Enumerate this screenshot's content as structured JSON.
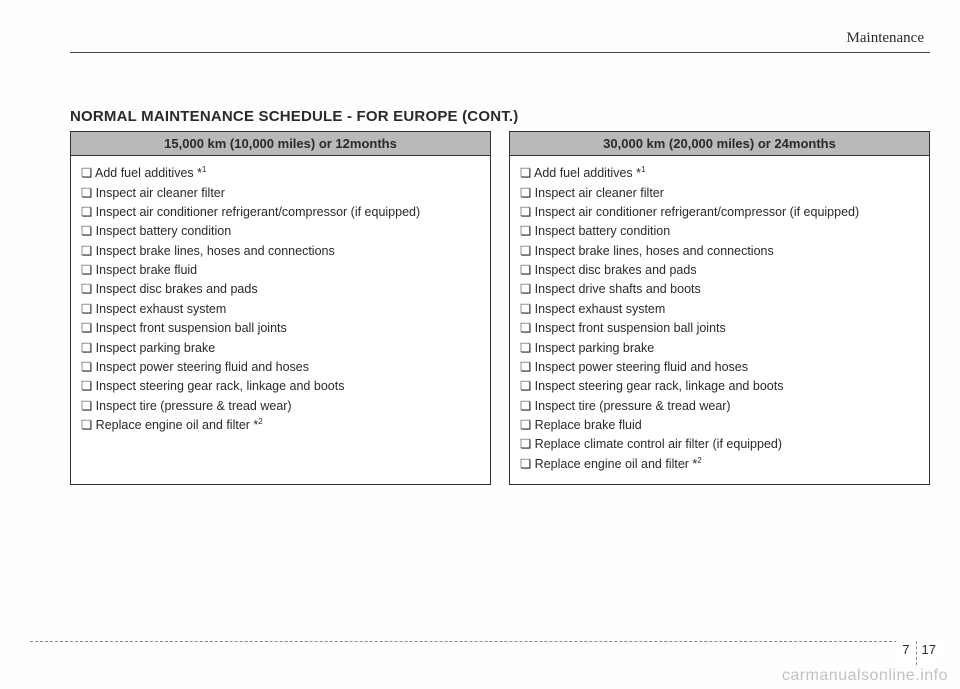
{
  "header": {
    "chapter": "Maintenance"
  },
  "section_title": "NORMAL MAINTENANCE SCHEDULE - FOR EUROPE (CONT.)",
  "columns": [
    {
      "heading": "15,000 km (10,000 miles) or 12months",
      "items": [
        {
          "text": "Add fuel additives *",
          "sup": "1"
        },
        {
          "text": "Inspect air cleaner filter"
        },
        {
          "text": "Inspect air conditioner refrigerant/compressor (if equipped)"
        },
        {
          "text": "Inspect battery condition"
        },
        {
          "text": "Inspect brake lines, hoses and connections"
        },
        {
          "text": "Inspect brake fluid"
        },
        {
          "text": "Inspect disc brakes and pads"
        },
        {
          "text": "Inspect exhaust system"
        },
        {
          "text": "Inspect front suspension ball joints"
        },
        {
          "text": "Inspect parking brake"
        },
        {
          "text": "Inspect power steering fluid and hoses"
        },
        {
          "text": "Inspect steering gear rack, linkage and boots"
        },
        {
          "text": "Inspect tire (pressure & tread wear)"
        },
        {
          "text": "Replace engine oil and filter *",
          "sup": "2"
        }
      ]
    },
    {
      "heading": "30,000 km (20,000 miles) or 24months",
      "items": [
        {
          "text": "Add fuel additives *",
          "sup": "1"
        },
        {
          "text": "Inspect air cleaner filter"
        },
        {
          "text": "Inspect air conditioner refrigerant/compressor (if equipped)"
        },
        {
          "text": "Inspect battery condition"
        },
        {
          "text": "Inspect brake lines, hoses and connections"
        },
        {
          "text": "Inspect disc brakes and pads"
        },
        {
          "text": "Inspect drive shafts and boots"
        },
        {
          "text": "Inspect exhaust system"
        },
        {
          "text": "Inspect front suspension ball joints"
        },
        {
          "text": "Inspect parking brake"
        },
        {
          "text": "Inspect power steering fluid and hoses"
        },
        {
          "text": "Inspect steering gear rack, linkage and boots"
        },
        {
          "text": "Inspect tire (pressure & tread wear)"
        },
        {
          "text": "Replace brake fluid"
        },
        {
          "text": "Replace climate control air filter (if equipped)"
        },
        {
          "text": "Replace engine oil and filter *",
          "sup": "2"
        }
      ]
    }
  ],
  "footer": {
    "page_section": "7",
    "page_number": "17"
  },
  "watermark": "carmanualsonline.info",
  "bullet": "❏",
  "colors": {
    "header_bg": "#b9b9b9",
    "border": "#333333",
    "text": "#2a2a2a"
  }
}
